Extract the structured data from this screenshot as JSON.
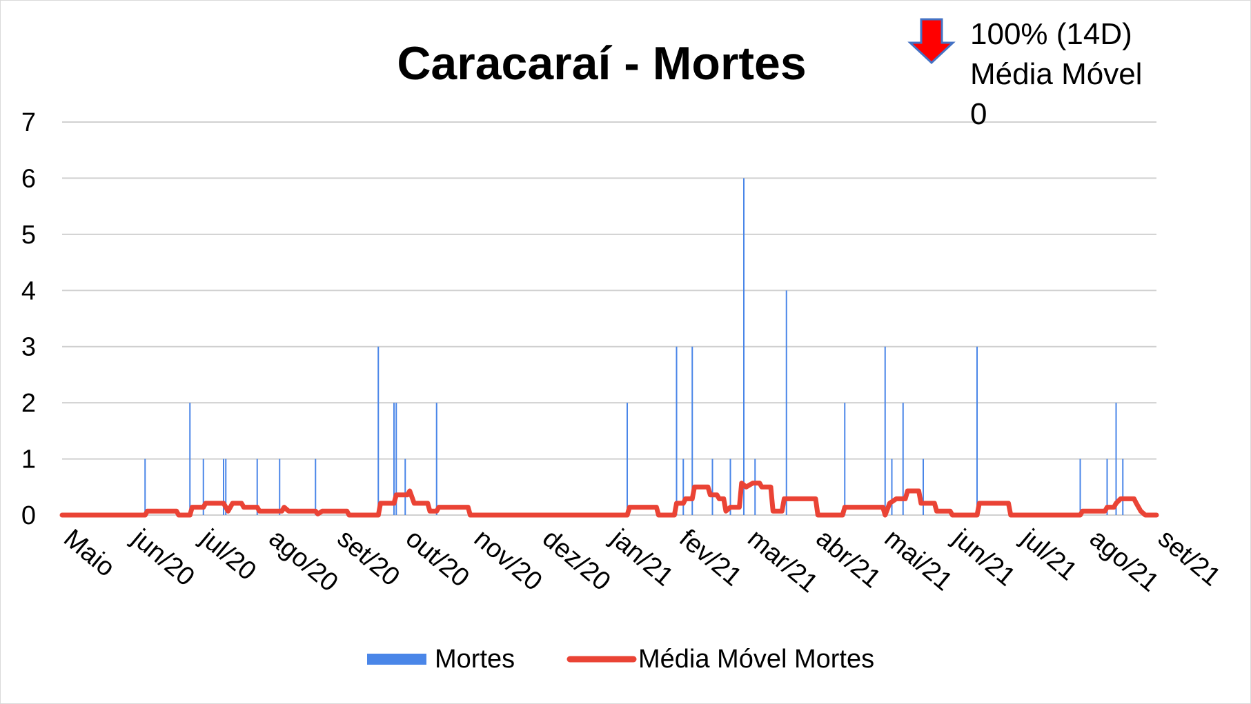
{
  "chart_data": {
    "type": "bar",
    "title": "Caracaraí - Mortes",
    "xlabel": "",
    "ylabel": "",
    "ylim": [
      0,
      7
    ],
    "yticks": [
      0,
      1,
      2,
      3,
      4,
      5,
      6,
      7
    ],
    "grid": true,
    "legend_position": "bottom",
    "x_range": [
      "2020-05-01",
      "2021-09-01"
    ],
    "x_tick_labels": [
      "Maio",
      "jun/20",
      "jul/20",
      "ago/20",
      "set/20",
      "out/20",
      "nov/20",
      "dez/20",
      "jan/21",
      "fev/21",
      "mar/21",
      "abr/21",
      "mai/21",
      "jun/21",
      "jul/21",
      "ago/21",
      "set/21"
    ],
    "series": [
      {
        "name": "Mortes",
        "type": "bar",
        "color": "#4a86e8",
        "points": [
          [
            "2020-06-07",
            1
          ],
          [
            "2020-06-27",
            2
          ],
          [
            "2020-07-03",
            1
          ],
          [
            "2020-07-12",
            1
          ],
          [
            "2020-07-13",
            1
          ],
          [
            "2020-07-27",
            1
          ],
          [
            "2020-08-06",
            1
          ],
          [
            "2020-08-22",
            1
          ],
          [
            "2020-09-19",
            3
          ],
          [
            "2020-09-26",
            2
          ],
          [
            "2020-09-27",
            2
          ],
          [
            "2020-10-01",
            1
          ],
          [
            "2020-10-15",
            2
          ],
          [
            "2021-01-08",
            2
          ],
          [
            "2021-01-30",
            3
          ],
          [
            "2021-02-02",
            1
          ],
          [
            "2021-02-06",
            3
          ],
          [
            "2021-02-15",
            1
          ],
          [
            "2021-02-23",
            1
          ],
          [
            "2021-03-01",
            6
          ],
          [
            "2021-03-06",
            1
          ],
          [
            "2021-03-20",
            4
          ],
          [
            "2021-04-15",
            2
          ],
          [
            "2021-05-03",
            3
          ],
          [
            "2021-05-06",
            1
          ],
          [
            "2021-05-11",
            2
          ],
          [
            "2021-05-20",
            1
          ],
          [
            "2021-06-13",
            3
          ],
          [
            "2021-07-29",
            1
          ],
          [
            "2021-08-10",
            1
          ],
          [
            "2021-08-14",
            2
          ],
          [
            "2021-08-17",
            1
          ]
        ]
      },
      {
        "name": "Média Móvel Mortes",
        "type": "line",
        "color": "#ea4335",
        "points": [
          [
            "2020-05-01",
            0
          ],
          [
            "2020-06-07",
            0
          ],
          [
            "2020-06-08",
            0.07
          ],
          [
            "2020-06-21",
            0.07
          ],
          [
            "2020-06-22",
            0
          ],
          [
            "2020-06-27",
            0
          ],
          [
            "2020-06-28",
            0.14
          ],
          [
            "2020-07-03",
            0.14
          ],
          [
            "2020-07-04",
            0.21
          ],
          [
            "2020-07-12",
            0.21
          ],
          [
            "2020-07-13",
            0.14
          ],
          [
            "2020-07-14",
            0.07
          ],
          [
            "2020-07-16",
            0.21
          ],
          [
            "2020-07-20",
            0.21
          ],
          [
            "2020-07-21",
            0.14
          ],
          [
            "2020-07-27",
            0.14
          ],
          [
            "2020-07-28",
            0.07
          ],
          [
            "2020-08-07",
            0.07
          ],
          [
            "2020-08-08",
            0.14
          ],
          [
            "2020-08-10",
            0.07
          ],
          [
            "2020-08-22",
            0.07
          ],
          [
            "2020-08-23",
            0.02
          ],
          [
            "2020-08-25",
            0.07
          ],
          [
            "2020-09-05",
            0.07
          ],
          [
            "2020-09-06",
            0
          ],
          [
            "2020-09-19",
            0
          ],
          [
            "2020-09-20",
            0.21
          ],
          [
            "2020-09-26",
            0.21
          ],
          [
            "2020-09-27",
            0.36
          ],
          [
            "2020-10-02",
            0.36
          ],
          [
            "2020-10-03",
            0.43
          ],
          [
            "2020-10-05",
            0.21
          ],
          [
            "2020-10-11",
            0.21
          ],
          [
            "2020-10-12",
            0.07
          ],
          [
            "2020-10-15",
            0.07
          ],
          [
            "2020-10-16",
            0.14
          ],
          [
            "2020-10-29",
            0.14
          ],
          [
            "2020-10-30",
            0
          ],
          [
            "2021-01-08",
            0
          ],
          [
            "2021-01-09",
            0.14
          ],
          [
            "2021-01-21",
            0.14
          ],
          [
            "2021-01-22",
            0
          ],
          [
            "2021-01-29",
            0
          ],
          [
            "2021-01-30",
            0.21
          ],
          [
            "2021-02-02",
            0.21
          ],
          [
            "2021-02-03",
            0.29
          ],
          [
            "2021-02-06",
            0.29
          ],
          [
            "2021-02-07",
            0.5
          ],
          [
            "2021-02-13",
            0.5
          ],
          [
            "2021-02-14",
            0.36
          ],
          [
            "2021-02-17",
            0.36
          ],
          [
            "2021-02-18",
            0.29
          ],
          [
            "2021-02-20",
            0.29
          ],
          [
            "2021-02-21",
            0.07
          ],
          [
            "2021-02-23",
            0.14
          ],
          [
            "2021-02-27",
            0.14
          ],
          [
            "2021-02-28",
            0.57
          ],
          [
            "2021-03-02",
            0.5
          ],
          [
            "2021-03-05",
            0.57
          ],
          [
            "2021-03-08",
            0.57
          ],
          [
            "2021-03-09",
            0.5
          ],
          [
            "2021-03-13",
            0.5
          ],
          [
            "2021-03-14",
            0.07
          ],
          [
            "2021-03-18",
            0.07
          ],
          [
            "2021-03-19",
            0.29
          ],
          [
            "2021-04-02",
            0.29
          ],
          [
            "2021-04-03",
            0
          ],
          [
            "2021-04-14",
            0
          ],
          [
            "2021-04-15",
            0.14
          ],
          [
            "2021-05-02",
            0.14
          ],
          [
            "2021-05-03",
            0
          ],
          [
            "2021-05-05",
            0.21
          ],
          [
            "2021-05-08",
            0.29
          ],
          [
            "2021-05-12",
            0.29
          ],
          [
            "2021-05-13",
            0.43
          ],
          [
            "2021-05-18",
            0.43
          ],
          [
            "2021-05-19",
            0.21
          ],
          [
            "2021-05-25",
            0.21
          ],
          [
            "2021-05-26",
            0.07
          ],
          [
            "2021-06-01",
            0.07
          ],
          [
            "2021-06-02",
            0
          ],
          [
            "2021-06-13",
            0
          ],
          [
            "2021-06-14",
            0.21
          ],
          [
            "2021-06-27",
            0.21
          ],
          [
            "2021-06-28",
            0
          ],
          [
            "2021-07-29",
            0
          ],
          [
            "2021-07-30",
            0.07
          ],
          [
            "2021-08-09",
            0.07
          ],
          [
            "2021-08-10",
            0.14
          ],
          [
            "2021-08-13",
            0.14
          ],
          [
            "2021-08-14",
            0.21
          ],
          [
            "2021-08-16",
            0.29
          ],
          [
            "2021-08-22",
            0.29
          ],
          [
            "2021-08-23",
            0.21
          ],
          [
            "2021-08-25",
            0.07
          ],
          [
            "2021-08-27",
            0
          ],
          [
            "2021-09-01",
            0
          ]
        ]
      }
    ],
    "annotation": {
      "icon": "red-down-arrow-icon",
      "icon_color": "#ff0000",
      "icon_outline": "#4472c4",
      "lines": [
        "100% (14D)",
        "Média Móvel",
        "0"
      ]
    }
  }
}
